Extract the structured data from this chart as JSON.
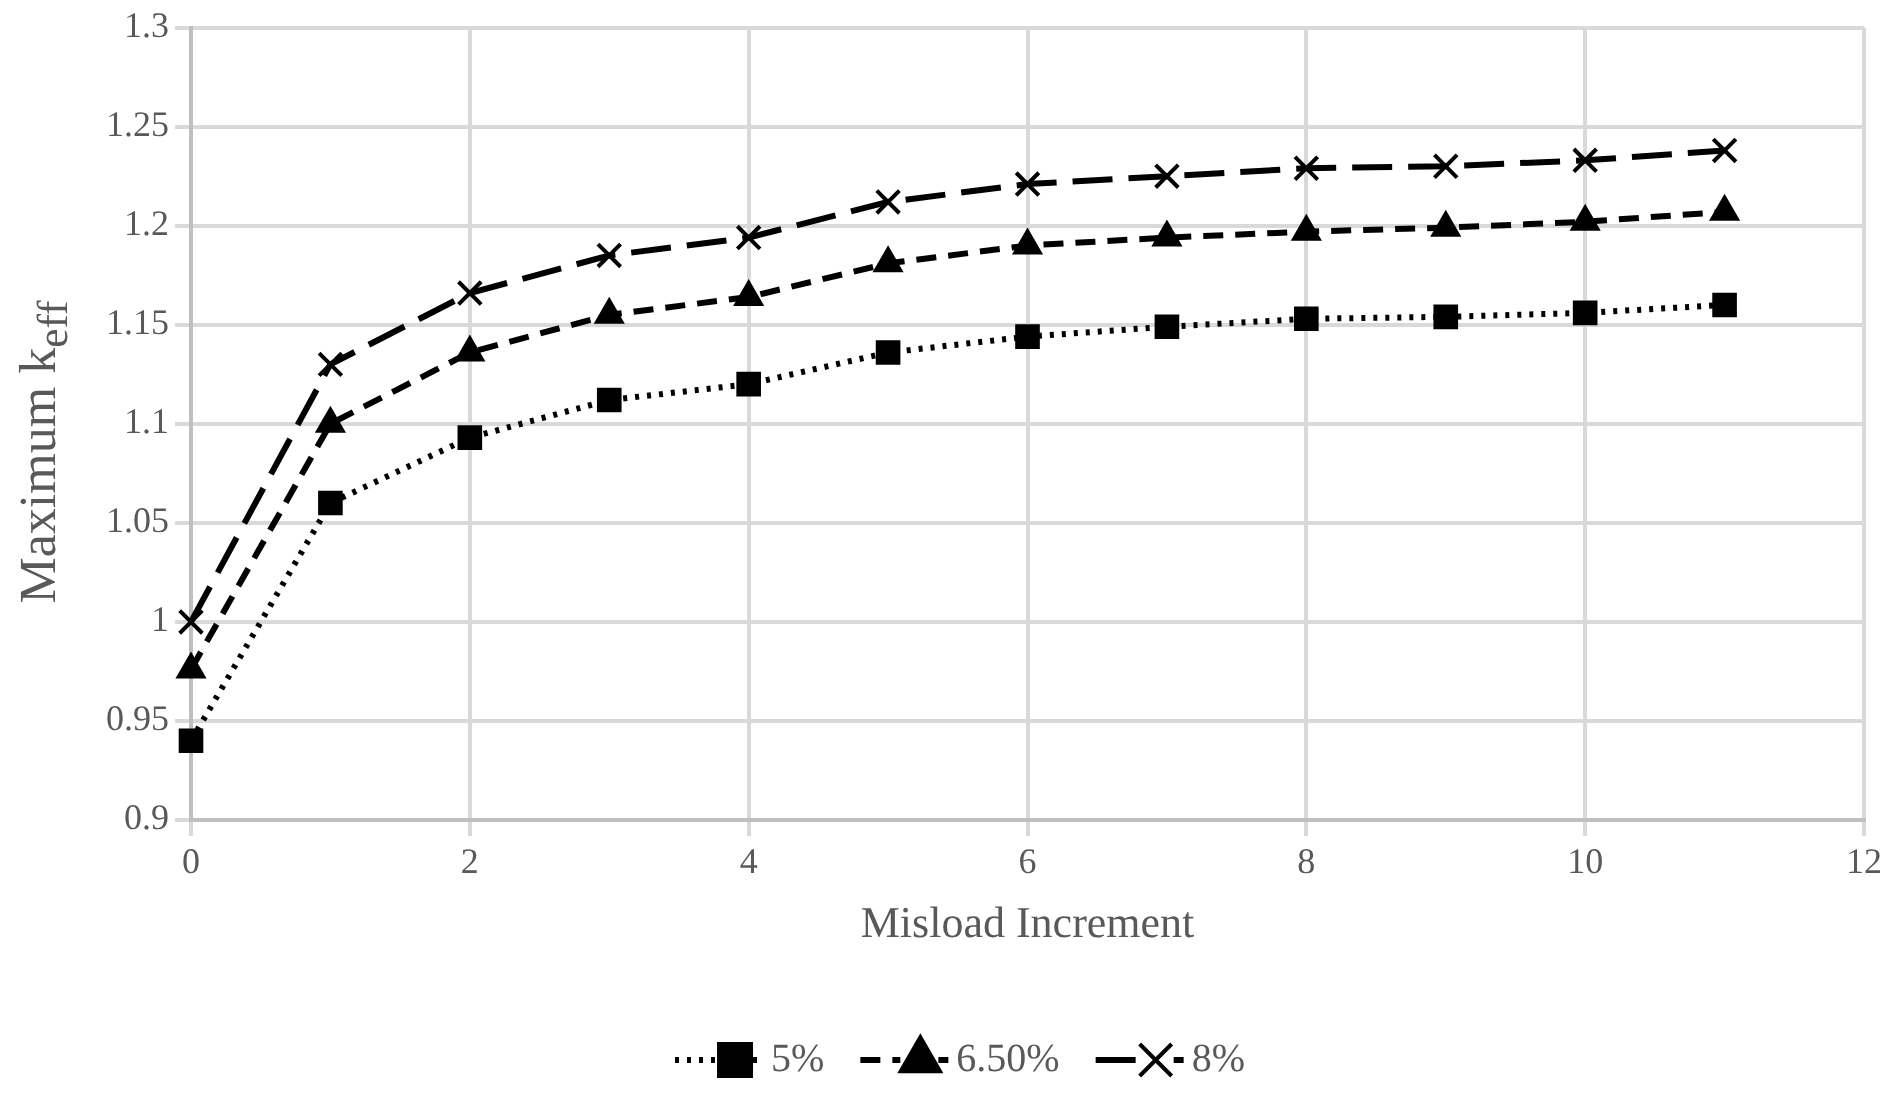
{
  "chart_data": {
    "type": "line",
    "xlabel": "Misload Increment",
    "ylabel": "Maximum k$_{eff}$",
    "x": [
      0,
      1,
      2,
      3,
      4,
      5,
      6,
      7,
      8,
      9,
      10,
      11
    ],
    "series": [
      {
        "name": "5%",
        "color": "#000000",
        "marker": "square",
        "line_style": "dotted",
        "values": [
          0.94,
          1.06,
          1.093,
          1.112,
          1.12,
          1.136,
          1.144,
          1.149,
          1.153,
          1.154,
          1.156,
          1.16
        ]
      },
      {
        "name": "6.50%",
        "color": "#000000",
        "marker": "triangle",
        "line_style": "dashed",
        "values": [
          0.976,
          1.1,
          1.136,
          1.155,
          1.164,
          1.181,
          1.19,
          1.194,
          1.197,
          1.199,
          1.202,
          1.207
        ]
      },
      {
        "name": "8%",
        "color": "#000000",
        "marker": "cross",
        "line_style": "long-dashed",
        "values": [
          1.0,
          1.13,
          1.166,
          1.185,
          1.194,
          1.212,
          1.221,
          1.225,
          1.229,
          1.23,
          1.233,
          1.238
        ]
      }
    ],
    "xlim": [
      0,
      12
    ],
    "xticks": [
      0,
      2,
      4,
      6,
      8,
      10,
      12
    ],
    "ylim": [
      0.9,
      1.3
    ],
    "yticks": [
      0.9,
      0.95,
      1,
      1.05,
      1.1,
      1.15,
      1.2,
      1.25,
      1.3
    ],
    "grid": true,
    "legend": "bottom"
  }
}
